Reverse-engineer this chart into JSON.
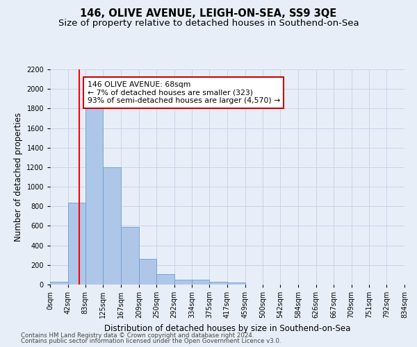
{
  "title": "146, OLIVE AVENUE, LEIGH-ON-SEA, SS9 3QE",
  "subtitle": "Size of property relative to detached houses in Southend-on-Sea",
  "xlabel": "Distribution of detached houses by size in Southend-on-Sea",
  "ylabel": "Number of detached properties",
  "bin_labels": [
    "0sqm",
    "42sqm",
    "83sqm",
    "125sqm",
    "167sqm",
    "209sqm",
    "250sqm",
    "292sqm",
    "334sqm",
    "375sqm",
    "417sqm",
    "459sqm",
    "500sqm",
    "542sqm",
    "584sqm",
    "626sqm",
    "667sqm",
    "709sqm",
    "751sqm",
    "792sqm",
    "834sqm"
  ],
  "bar_heights": [
    25,
    840,
    1800,
    1200,
    590,
    260,
    110,
    50,
    50,
    30,
    20,
    0,
    0,
    0,
    0,
    0,
    0,
    0,
    0,
    0
  ],
  "bar_color": "#aec6e8",
  "bar_edge_color": "#6aa0d4",
  "grid_color": "#c8d4e8",
  "bg_color": "#e8eef8",
  "vline_x": 68,
  "annotation_line1": "146 OLIVE AVENUE: 68sqm",
  "annotation_line2": "← 7% of detached houses are smaller (323)",
  "annotation_line3": "93% of semi-detached houses are larger (4,570) →",
  "annotation_box_color": "#ffffff",
  "annotation_box_edge": "#cc0000",
  "ylim": [
    0,
    2200
  ],
  "yticks": [
    0,
    200,
    400,
    600,
    800,
    1000,
    1200,
    1400,
    1600,
    1800,
    2000,
    2200
  ],
  "footnote1": "Contains HM Land Registry data © Crown copyright and database right 2024.",
  "footnote2": "Contains public sector information licensed under the Open Government Licence v3.0.",
  "title_fontsize": 10.5,
  "subtitle_fontsize": 9.5,
  "label_fontsize": 8.5,
  "tick_fontsize": 7,
  "annot_fontsize": 7.8
}
